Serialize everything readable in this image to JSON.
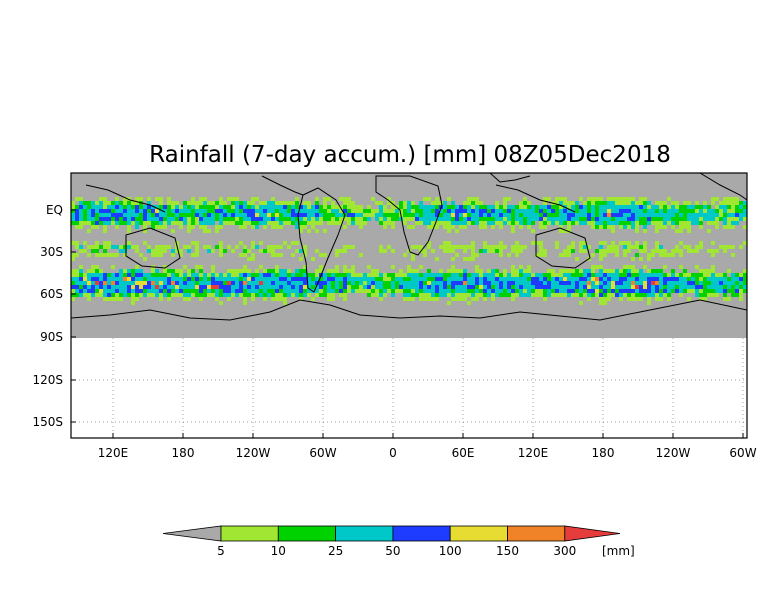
{
  "map": {
    "title": "Rainfall (7-day accum.) [mm] 08Z05Dec2018",
    "variable": "7-day accumulated rainfall",
    "y_ticks": [
      "EQ",
      "30S",
      "60S",
      "90S",
      "120S",
      "150S"
    ],
    "x_ticks": [
      "120E",
      "180",
      "120W",
      "60W",
      "0",
      "60E",
      "120E",
      "180",
      "120W",
      "60W"
    ],
    "background_color": "#a9a9a9",
    "coastline_color": "#000000"
  },
  "legend": {
    "unit": "[mm]",
    "thresholds": [
      "5",
      "10",
      "25",
      "50",
      "100",
      "150",
      "300"
    ],
    "colors": [
      "#a9a9a9",
      "#a0e632",
      "#00d200",
      "#00c8c8",
      "#1e3cff",
      "#e6dc32",
      "#f08228",
      "#e63c3c"
    ]
  }
}
